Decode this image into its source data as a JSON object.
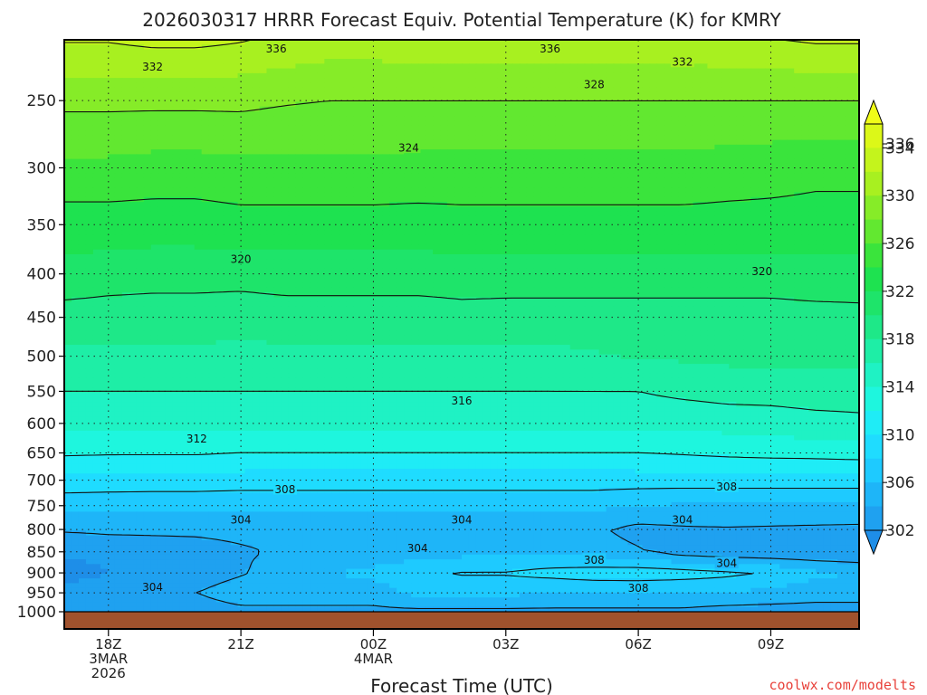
{
  "chart_data": {
    "type": "heatmap",
    "title": "2026030317 HRRR Forecast Equiv. Potential Temperature (K) for KMRY",
    "xlabel": "Forecast Time (UTC)",
    "ylabel": "",
    "credit": "coolwx.com/modelts",
    "x_range_hours": [
      -1,
      17
    ],
    "y_levels": [
      1000,
      950,
      900,
      850,
      800,
      750,
      700,
      650,
      600,
      550,
      500,
      450,
      400,
      350,
      300,
      250
    ],
    "y_tick_labels": [
      "1000",
      "950",
      "900",
      "850",
      "800",
      "750",
      "700",
      "650",
      "600",
      "550",
      "500",
      "450",
      "400",
      "350",
      "300",
      "250"
    ],
    "y_log_scale": true,
    "x_ticks": [
      {
        "hour": 0,
        "lines": [
          "18Z",
          "3MAR",
          "2026"
        ]
      },
      {
        "hour": 3,
        "lines": [
          "21Z"
        ]
      },
      {
        "hour": 6,
        "lines": [
          "00Z",
          "4MAR"
        ]
      },
      {
        "hour": 9,
        "lines": [
          "03Z"
        ]
      },
      {
        "hour": 12,
        "lines": [
          "06Z"
        ]
      },
      {
        "hour": 15,
        "lines": [
          "09Z"
        ]
      }
    ],
    "grid": true,
    "colorbar": {
      "unit": "K",
      "boundaries": [
        300,
        302,
        304,
        306,
        308,
        310,
        312,
        314,
        316,
        318,
        320,
        322,
        324,
        326,
        328,
        330,
        332,
        334,
        336,
        338
      ],
      "tick_labels": [
        "302",
        "306",
        "310",
        "314",
        "318",
        "322",
        "326",
        "330",
        "334",
        "336"
      ],
      "colors": [
        "#1e8ee8",
        "#1fa1f0",
        "#1eb5f8",
        "#1ecaff",
        "#1fdcff",
        "#1fecf6",
        "#1ef6de",
        "#1ff2c4",
        "#1eeea6",
        "#1ee888",
        "#1ee46a",
        "#1ee250",
        "#3ae43c",
        "#62e830",
        "#86ec28",
        "#a8f020",
        "#c4f41c",
        "#dcf818",
        "#f0fc18"
      ],
      "extend": "both"
    },
    "profiles": [
      {
        "hour": -1.0,
        "theta": [
          303.0,
          303.8,
          300.5,
          302.5,
          304.2,
          306.5,
          309.5,
          312.3,
          314.5,
          316.0,
          317.5,
          319.0,
          321.5,
          323.0,
          325.5,
          328.5
        ]
      },
      {
        "hour": 0.0,
        "theta": [
          303.0,
          303.5,
          302.0,
          303.0,
          304.3,
          306.5,
          309.3,
          312.2,
          314.5,
          316.0,
          317.5,
          319.0,
          321.0,
          323.0,
          325.5,
          328.5
        ]
      },
      {
        "hour": 1.0,
        "theta": [
          303.0,
          303.5,
          302.6,
          303.2,
          304.3,
          306.5,
          309.2,
          312.2,
          314.5,
          316.0,
          317.5,
          319.0,
          320.8,
          323.0,
          325.2,
          328.5
        ]
      },
      {
        "hour": 2.0,
        "theta": [
          303.0,
          304.0,
          303.0,
          303.4,
          304.3,
          306.5,
          309.2,
          312.2,
          314.5,
          316.0,
          317.5,
          319.0,
          320.8,
          323.0,
          325.2,
          328.5
        ]
      },
      {
        "hour": 3.0,
        "theta": [
          303.5,
          305.0,
          303.8,
          303.8,
          304.4,
          306.5,
          309.0,
          312.0,
          314.5,
          316.0,
          317.5,
          318.8,
          320.8,
          323.2,
          325.5,
          328.5
        ]
      },
      {
        "hour": 4.0,
        "theta": [
          303.5,
          305.0,
          305.0,
          304.2,
          304.4,
          306.5,
          309.0,
          312.0,
          314.5,
          316.0,
          317.5,
          319.0,
          321.0,
          323.2,
          325.5,
          328.2
        ]
      },
      {
        "hour": 5.0,
        "theta": [
          303.5,
          305.0,
          306.0,
          304.5,
          304.4,
          306.5,
          309.0,
          312.0,
          314.5,
          316.0,
          317.5,
          319.0,
          321.0,
          323.2,
          325.5,
          328.0
        ]
      },
      {
        "hour": 6.0,
        "theta": [
          303.5,
          305.0,
          306.5,
          304.6,
          304.4,
          306.5,
          309.0,
          312.0,
          314.5,
          316.0,
          317.5,
          319.0,
          321.0,
          323.2,
          325.5,
          328.0
        ]
      },
      {
        "hour": 7.0,
        "theta": [
          303.5,
          306.5,
          307.5,
          305.0,
          304.4,
          306.5,
          309.0,
          312.0,
          314.5,
          316.0,
          317.5,
          319.0,
          321.0,
          323.2,
          325.3,
          328.0
        ]
      },
      {
        "hour": 8.0,
        "theta": [
          303.5,
          306.5,
          308.2,
          305.3,
          304.4,
          306.5,
          309.0,
          312.0,
          314.5,
          316.0,
          317.5,
          319.3,
          321.0,
          323.3,
          325.3,
          328.0
        ]
      },
      {
        "hour": 9.0,
        "theta": [
          303.5,
          306.5,
          308.2,
          305.5,
          304.4,
          306.5,
          309.0,
          312.0,
          314.5,
          316.0,
          317.5,
          319.2,
          321.0,
          323.3,
          325.3,
          328.0
        ]
      },
      {
        "hour": 10.0,
        "theta": [
          303.5,
          306.0,
          308.7,
          305.6,
          304.4,
          306.5,
          309.0,
          312.0,
          314.5,
          316.0,
          317.5,
          319.2,
          321.0,
          323.3,
          325.3,
          328.0
        ]
      },
      {
        "hour": 11.0,
        "theta": [
          303.5,
          306.0,
          309.2,
          304.8,
          304.3,
          306.5,
          309.0,
          312.0,
          314.5,
          316.0,
          317.8,
          319.2,
          321.0,
          323.3,
          325.3,
          328.0
        ]
      },
      {
        "hour": 12.0,
        "theta": [
          303.5,
          306.0,
          309.3,
          304.2,
          303.4,
          306.0,
          309.0,
          312.0,
          314.5,
          316.0,
          318.2,
          319.2,
          321.0,
          323.3,
          325.3,
          328.0
        ]
      },
      {
        "hour": 13.0,
        "theta": [
          303.5,
          306.0,
          309.0,
          303.0,
          303.7,
          305.8,
          309.0,
          312.2,
          314.5,
          316.5,
          318.3,
          319.2,
          321.0,
          323.3,
          325.3,
          328.0
        ]
      },
      {
        "hour": 14.0,
        "theta": [
          303.0,
          306.0,
          308.5,
          302.5,
          303.8,
          305.8,
          309.0,
          312.5,
          314.8,
          316.8,
          318.5,
          319.2,
          321.0,
          323.3,
          325.0,
          328.0
        ]
      },
      {
        "hour": 15.0,
        "theta": [
          303.0,
          305.5,
          307.8,
          302.3,
          303.7,
          305.8,
          309.0,
          312.7,
          315.0,
          316.8,
          318.5,
          319.2,
          321.0,
          323.3,
          324.8,
          328.0
        ]
      },
      {
        "hour": 16.0,
        "theta": [
          303.0,
          305.0,
          306.5,
          302.2,
          303.6,
          305.8,
          309.0,
          312.8,
          315.3,
          317.0,
          318.5,
          319.3,
          321.2,
          323.3,
          324.5,
          328.0
        ]
      },
      {
        "hour": 17.0,
        "theta": [
          303.0,
          305.0,
          305.8,
          302.1,
          303.5,
          305.8,
          309.0,
          313.0,
          315.5,
          317.0,
          318.5,
          319.4,
          321.2,
          323.3,
          324.5,
          328.0
        ]
      }
    ],
    "contour_levels": [
      304,
      308,
      312,
      316,
      320,
      324,
      328,
      332,
      336
    ],
    "contour_labels": [
      {
        "text": "336",
        "hour": 3.8,
        "p": 217
      },
      {
        "text": "336",
        "hour": 10.0,
        "p": 217
      },
      {
        "text": "332",
        "hour": 1.0,
        "p": 228
      },
      {
        "text": "332",
        "hour": 13.0,
        "p": 225
      },
      {
        "text": "328",
        "hour": 11.0,
        "p": 239
      },
      {
        "text": "324",
        "hour": 6.8,
        "p": 284
      },
      {
        "text": "320",
        "hour": 3.0,
        "p": 384
      },
      {
        "text": "320",
        "hour": 14.8,
        "p": 397
      },
      {
        "text": "316",
        "hour": 8.0,
        "p": 564
      },
      {
        "text": "312",
        "hour": 2.0,
        "p": 625
      },
      {
        "text": "308",
        "hour": 4.0,
        "p": 717
      },
      {
        "text": "308",
        "hour": 14.0,
        "p": 712
      },
      {
        "text": "304",
        "hour": 3.0,
        "p": 779
      },
      {
        "text": "304",
        "hour": 8.0,
        "p": 779
      },
      {
        "text": "304",
        "hour": 13.0,
        "p": 779
      },
      {
        "text": "304",
        "hour": 7.0,
        "p": 841
      },
      {
        "text": "304",
        "hour": 14.0,
        "p": 876
      },
      {
        "text": "304",
        "hour": 1.0,
        "p": 935
      },
      {
        "text": "308",
        "hour": 11.0,
        "p": 868
      },
      {
        "text": "308",
        "hour": 12.0,
        "p": 937
      }
    ],
    "ground_color": "#a0522d"
  }
}
